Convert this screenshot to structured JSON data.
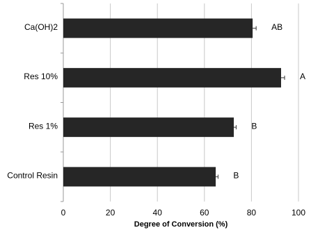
{
  "chart_data": {
    "type": "bar",
    "orientation": "horizontal",
    "x_label": "Degree of Conversion (%)",
    "categories": [
      "Ca(OH)2",
      "Res 10%",
      "Res 1%",
      "Control Resin"
    ],
    "values": [
      80.5,
      92.6,
      72.5,
      64.8
    ],
    "errors": [
      1.5,
      1.5,
      1,
      1
    ],
    "annotations": [
      "AB",
      "A",
      "B",
      "B"
    ],
    "color": "#262626",
    "xlim": [
      0,
      100
    ],
    "xticks": [
      0,
      20,
      40,
      60,
      80,
      100
    ],
    "grid": true
  }
}
